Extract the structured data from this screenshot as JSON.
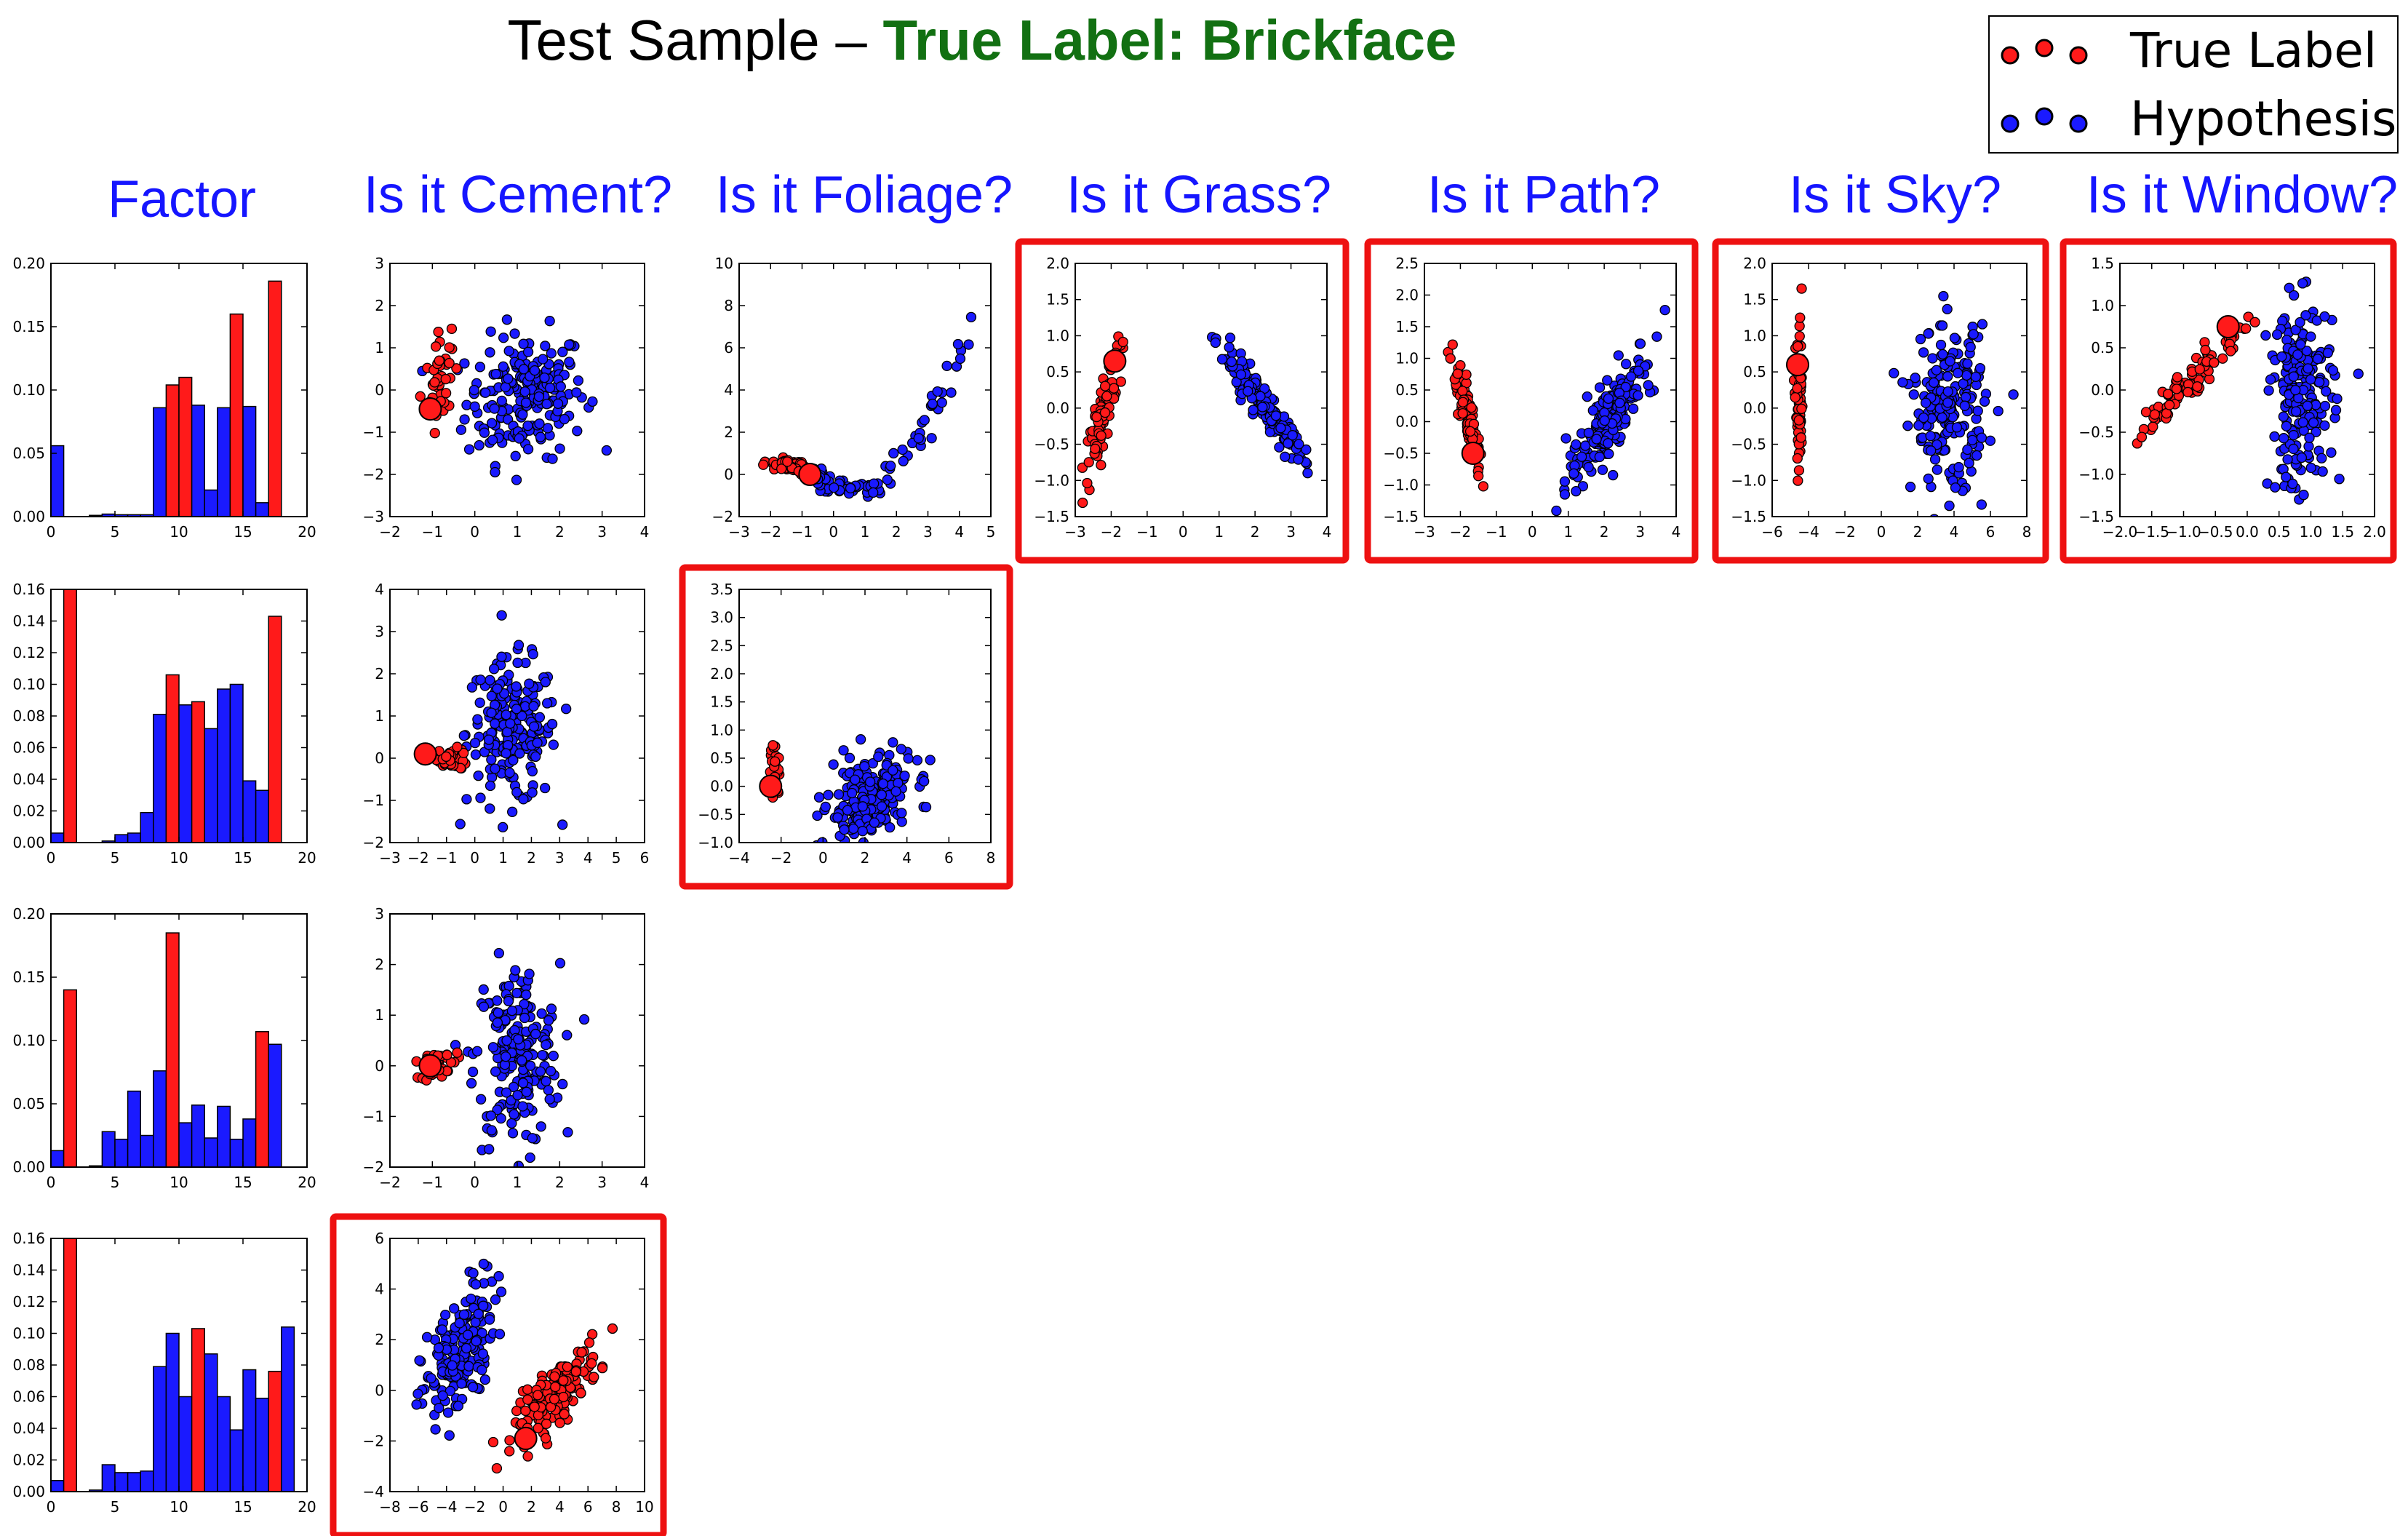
{
  "title": {
    "prefix": "Test Sample – ",
    "highlight": "True Label: Brickface",
    "highlight_color": "#127012"
  },
  "legend": {
    "entries": [
      {
        "label": "True Label",
        "color": "#ff1a1a"
      },
      {
        "label": "Hypothesis",
        "color": "#1a1aff"
      }
    ]
  },
  "column_headers": [
    "Factor",
    "Is it Cement?",
    "Is it Foliage?",
    "Is it Grass?",
    "Is it Path?",
    "Is it Sky?",
    "Is it Window?"
  ],
  "header_color": "#1515ff",
  "highlight_box_color": "#ee1111",
  "chart_data": [
    {
      "type": "bar",
      "id": "factor-1",
      "x": [
        0,
        1,
        2,
        3,
        4,
        5,
        6,
        7,
        8,
        9,
        10,
        11,
        12,
        13,
        14,
        15,
        16,
        17,
        18
      ],
      "values": [
        0.056,
        0,
        0,
        0.001,
        0.002,
        0.0015,
        0.0015,
        0.0015,
        0.086,
        0.104,
        0.11,
        0.088,
        0.021,
        0.086,
        0.16,
        0.087,
        0.011,
        0.186,
        0
      ],
      "red": [
        9,
        10,
        14,
        17
      ],
      "xlim": [
        0,
        20
      ],
      "ylim": [
        0,
        0.2
      ],
      "xticks": [
        "0",
        "5",
        "10",
        "15",
        "20"
      ],
      "yticks": [
        "0.00",
        "0.05",
        "0.10",
        "0.15",
        "0.20"
      ]
    },
    {
      "type": "bar",
      "id": "factor-2",
      "x": [
        0,
        1,
        2,
        3,
        4,
        5,
        6,
        7,
        8,
        9,
        10,
        11,
        12,
        13,
        14,
        15,
        16,
        17,
        18
      ],
      "values": [
        0.006,
        0.16,
        0,
        0,
        0.001,
        0.005,
        0.006,
        0.019,
        0.081,
        0.106,
        0.087,
        0.089,
        0.072,
        0.097,
        0.1,
        0.039,
        0.033,
        0.143,
        0
      ],
      "red": [
        1,
        9,
        11,
        17
      ],
      "xlim": [
        0,
        20
      ],
      "ylim": [
        0,
        0.16
      ],
      "xticks": [
        "0",
        "5",
        "10",
        "15",
        "20"
      ],
      "yticks": [
        "0.00",
        "0.02",
        "0.04",
        "0.06",
        "0.08",
        "0.10",
        "0.12",
        "0.14",
        "0.16"
      ]
    },
    {
      "type": "bar",
      "id": "factor-3",
      "x": [
        0,
        1,
        2,
        3,
        4,
        5,
        6,
        7,
        8,
        9,
        10,
        11,
        12,
        13,
        14,
        15,
        16,
        17,
        18
      ],
      "values": [
        0.013,
        0.14,
        0,
        0.001,
        0.028,
        0.022,
        0.06,
        0.025,
        0.076,
        0.185,
        0.035,
        0.049,
        0.023,
        0.048,
        0.022,
        0.038,
        0.107,
        0.097,
        0
      ],
      "red": [
        1,
        9,
        16
      ],
      "xlim": [
        0,
        20
      ],
      "ylim": [
        0,
        0.2
      ],
      "xticks": [
        "0",
        "5",
        "10",
        "15",
        "20"
      ],
      "yticks": [
        "0.00",
        "0.05",
        "0.10",
        "0.15",
        "0.20"
      ]
    },
    {
      "type": "bar",
      "id": "factor-4",
      "x": [
        0,
        1,
        2,
        3,
        4,
        5,
        6,
        7,
        8,
        9,
        10,
        11,
        12,
        13,
        14,
        15,
        16,
        17,
        18
      ],
      "values": [
        0.007,
        0.16,
        0,
        0.001,
        0.017,
        0.012,
        0.012,
        0.013,
        0.079,
        0.1,
        0.06,
        0.103,
        0.087,
        0.06,
        0.039,
        0.077,
        0.059,
        0.076,
        0.104
      ],
      "red": [
        1,
        11,
        17
      ],
      "xlim": [
        0,
        20
      ],
      "ylim": [
        0,
        0.16
      ],
      "xticks": [
        "0",
        "5",
        "10",
        "15",
        "20"
      ],
      "yticks": [
        "0.00",
        "0.02",
        "0.04",
        "0.06",
        "0.08",
        "0.10",
        "0.12",
        "0.14",
        "0.16"
      ]
    },
    {
      "type": "scatter",
      "id": "cement-1",
      "xlim": [
        -2,
        4
      ],
      "ylim": [
        -3,
        3
      ],
      "xticks": [
        "−2",
        "−1",
        "0",
        "1",
        "2",
        "3",
        "4"
      ],
      "yticks": [
        "−3",
        "−2",
        "−1",
        "0",
        "1",
        "2",
        "3"
      ],
      "red_cluster": {
        "cx": -0.85,
        "cy": 0.2,
        "sx": 0.15,
        "sy": 0.55,
        "rho": 0.3,
        "n": 55
      },
      "blue_cluster": {
        "cx": 1.2,
        "cy": -0.15,
        "sx": 0.7,
        "sy": 0.75,
        "rho": 0.1,
        "n": 200
      },
      "big": [
        -1.05,
        -0.45
      ]
    },
    {
      "type": "scatter",
      "id": "cement-2",
      "xlim": [
        -3,
        6
      ],
      "ylim": [
        -2,
        4
      ],
      "xticks": [
        "−3",
        "−2",
        "−1",
        "0",
        "1",
        "2",
        "3",
        "4",
        "5",
        "6"
      ],
      "yticks": [
        "−2",
        "−1",
        "0",
        "1",
        "2",
        "3",
        "4"
      ],
      "red_cluster": {
        "cx": -0.8,
        "cy": 0,
        "sx": 0.3,
        "sy": 0.12,
        "rho": -0.2,
        "n": 40
      },
      "blue_cluster": {
        "cx": 1.3,
        "cy": 0.6,
        "sx": 0.8,
        "sy": 0.85,
        "rho": 0.0,
        "n": 200
      },
      "big": [
        -1.75,
        0.1
      ]
    },
    {
      "type": "scatter",
      "id": "cement-3",
      "xlim": [
        -2,
        4
      ],
      "ylim": [
        -2,
        3
      ],
      "xticks": [
        "−2",
        "−1",
        "0",
        "1",
        "2",
        "3",
        "4"
      ],
      "yticks": [
        "−2",
        "−1",
        "0",
        "1",
        "2",
        "3"
      ],
      "red_cluster": {
        "cx": -0.85,
        "cy": 0.05,
        "sx": 0.2,
        "sy": 0.15,
        "rho": 0.3,
        "n": 40
      },
      "blue_cluster": {
        "cx": 1.0,
        "cy": 0.2,
        "sx": 0.5,
        "sy": 0.9,
        "rho": 0.0,
        "n": 200
      },
      "big": [
        -1.05,
        0
      ]
    },
    {
      "type": "scatter",
      "id": "cement-4",
      "xlim": [
        -8,
        10
      ],
      "ylim": [
        -4,
        6
      ],
      "xticks": [
        "−8",
        "−6",
        "−4",
        "−2",
        "0",
        "2",
        "4",
        "6",
        "8",
        "10"
      ],
      "yticks": [
        "−4",
        "−2",
        "0",
        "2",
        "4",
        "6"
      ],
      "red_cluster": {
        "cx": 3.8,
        "cy": -0.1,
        "sx": 1.5,
        "sy": 0.9,
        "rho": 0.8,
        "n": 160
      },
      "blue_cluster": {
        "cx": -3.2,
        "cy": 1.3,
        "sx": 1.3,
        "sy": 1.5,
        "rho": 0.6,
        "n": 180
      },
      "big": [
        1.6,
        -1.9
      ]
    },
    {
      "type": "scatter",
      "id": "foliage-1",
      "xlim": [
        -3,
        5
      ],
      "ylim": [
        -2,
        10
      ],
      "xticks": [
        "−3",
        "−2",
        "−1",
        "0",
        "1",
        "2",
        "3",
        "4",
        "5"
      ],
      "yticks": [
        "−2",
        "0",
        "2",
        "4",
        "6",
        "8",
        "10"
      ],
      "red_cluster": {
        "cx": -1.4,
        "cy": 0.4,
        "sx": 0.35,
        "sy": 0.15,
        "rho": -0.5,
        "n": 60
      },
      "blue_curve": {
        "x0": -0.5,
        "x1": 4.5,
        "vertex": [
          0.6,
          -0.7
        ],
        "a": 0.55,
        "n": 90
      },
      "big": [
        -0.75,
        0.0
      ]
    },
    {
      "type": "scatter",
      "id": "foliage-2",
      "xlim": [
        -4,
        8
      ],
      "ylim": [
        -1,
        3.5
      ],
      "xticks": [
        "−4",
        "−2",
        "0",
        "2",
        "4",
        "6",
        "8"
      ],
      "yticks": [
        "−1.0",
        "−0.5",
        "0.0",
        "0.5",
        "1.0",
        "1.5",
        "2.0",
        "2.5",
        "3.0",
        "3.5"
      ],
      "red_cluster": {
        "cx": -2.3,
        "cy": 0.25,
        "sx": 0.12,
        "sy": 0.25,
        "rho": 0.2,
        "n": 30
      },
      "blue_cluster": {
        "cx": 2.2,
        "cy": -0.25,
        "sx": 1.0,
        "sy": 0.4,
        "rho": 0.3,
        "n": 220
      },
      "big": [
        -2.5,
        0.0
      ]
    },
    {
      "type": "scatter",
      "id": "grass-1",
      "xlim": [
        -3,
        4
      ],
      "ylim": [
        -1.5,
        2
      ],
      "xticks": [
        "−3",
        "−2",
        "−1",
        "0",
        "1",
        "2",
        "3",
        "4"
      ],
      "yticks": [
        "−1.5",
        "−1.0",
        "−0.5",
        "0.0",
        "0.5",
        "1.0",
        "1.5",
        "2.0"
      ],
      "red_cluster": {
        "cx": -2.2,
        "cy": 0.0,
        "sx": 0.25,
        "sy": 0.45,
        "rho": 0.9,
        "n": 90
      },
      "blue_cluster": {
        "cx": 2.2,
        "cy": 0.05,
        "sx": 0.6,
        "sy": 0.4,
        "rho": -0.95,
        "n": 160
      },
      "big": [
        -1.9,
        0.65
      ]
    },
    {
      "type": "scatter",
      "id": "path-1",
      "xlim": [
        -3,
        4
      ],
      "ylim": [
        -1.5,
        2.5
      ],
      "xticks": [
        "−3",
        "−2",
        "−1",
        "0",
        "1",
        "2",
        "3",
        "4"
      ],
      "yticks": [
        "−1.5",
        "−1.0",
        "−0.5",
        "0.0",
        "0.5",
        "1.0",
        "1.5",
        "2.0",
        "2.5"
      ],
      "red_cluster": {
        "cx": -1.8,
        "cy": 0.05,
        "sx": 0.2,
        "sy": 0.45,
        "rho": -0.85,
        "n": 90
      },
      "blue_cluster": {
        "cx": 2.2,
        "cy": 0.1,
        "sx": 0.6,
        "sy": 0.55,
        "rho": 0.85,
        "n": 180
      },
      "big": [
        -1.65,
        -0.5
      ]
    },
    {
      "type": "scatter",
      "id": "sky-1",
      "xlim": [
        -6,
        8
      ],
      "ylim": [
        -1.5,
        2
      ],
      "xticks": [
        "−6",
        "−4",
        "−2",
        "0",
        "2",
        "4",
        "6",
        "8"
      ],
      "yticks": [
        "−1.5",
        "−1.0",
        "−0.5",
        "0.0",
        "0.5",
        "1.0",
        "1.5",
        "2.0"
      ],
      "red_cluster": {
        "cx": -4.5,
        "cy": 0.0,
        "sx": 0.1,
        "sy": 0.5,
        "rho": 0.0,
        "n": 70
      },
      "blue_cluster": {
        "cx": 3.7,
        "cy": 0.0,
        "sx": 1.0,
        "sy": 0.55,
        "rho": 0.0,
        "n": 200
      },
      "big": [
        -4.6,
        0.6
      ]
    },
    {
      "type": "scatter",
      "id": "window-1",
      "xlim": [
        -2,
        2
      ],
      "ylim": [
        -1.5,
        1.5
      ],
      "xticks": [
        "−2.0",
        "−1.5",
        "−1.0",
        "−0.5",
        "0.0",
        "0.5",
        "1.0",
        "1.5",
        "2.0"
      ],
      "yticks": [
        "−1.5",
        "−1.0",
        "−0.5",
        "0.0",
        "0.5",
        "1.0",
        "1.5"
      ],
      "red_cluster": {
        "cx": -0.85,
        "cy": 0.15,
        "sx": 0.45,
        "sy": 0.35,
        "rho": 0.95,
        "n": 90
      },
      "blue_cluster": {
        "cx": 0.85,
        "cy": -0.05,
        "sx": 0.25,
        "sy": 0.55,
        "rho": 0.1,
        "n": 200
      },
      "big": [
        -0.3,
        0.75
      ]
    }
  ]
}
